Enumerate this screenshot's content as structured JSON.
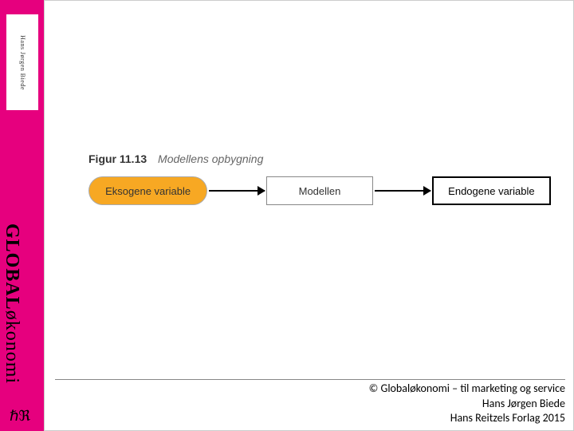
{
  "sidebar": {
    "author": "Hans Jørgen Biede",
    "title_bold": "GLOBAL",
    "title_rest": "økonomi",
    "logo": "ℏℜ",
    "bg_color": "#e6007e"
  },
  "figure": {
    "number": "Figur 11.13",
    "title": "Modellens opbygning",
    "caption_fontsize": 14,
    "nodes": [
      {
        "label": "Eksogene variable",
        "shape": "rounded",
        "fill": "#f7a823",
        "border": "#aaaaaa",
        "text_color": "#333333"
      },
      {
        "label": "Modellen",
        "shape": "rect",
        "fill": "#ffffff",
        "border": "#888888",
        "text_color": "#333333"
      },
      {
        "label": "Endogene variable",
        "shape": "rect-thick",
        "fill": "#ffffff",
        "border": "#000000",
        "text_color": "#000000"
      }
    ],
    "arrow_color": "#000000"
  },
  "footer": {
    "line1": "© Globaløkonomi – til marketing og service",
    "line2": "Hans Jørgen Biede",
    "line3": "Hans Reitzels Forlag 2015"
  }
}
